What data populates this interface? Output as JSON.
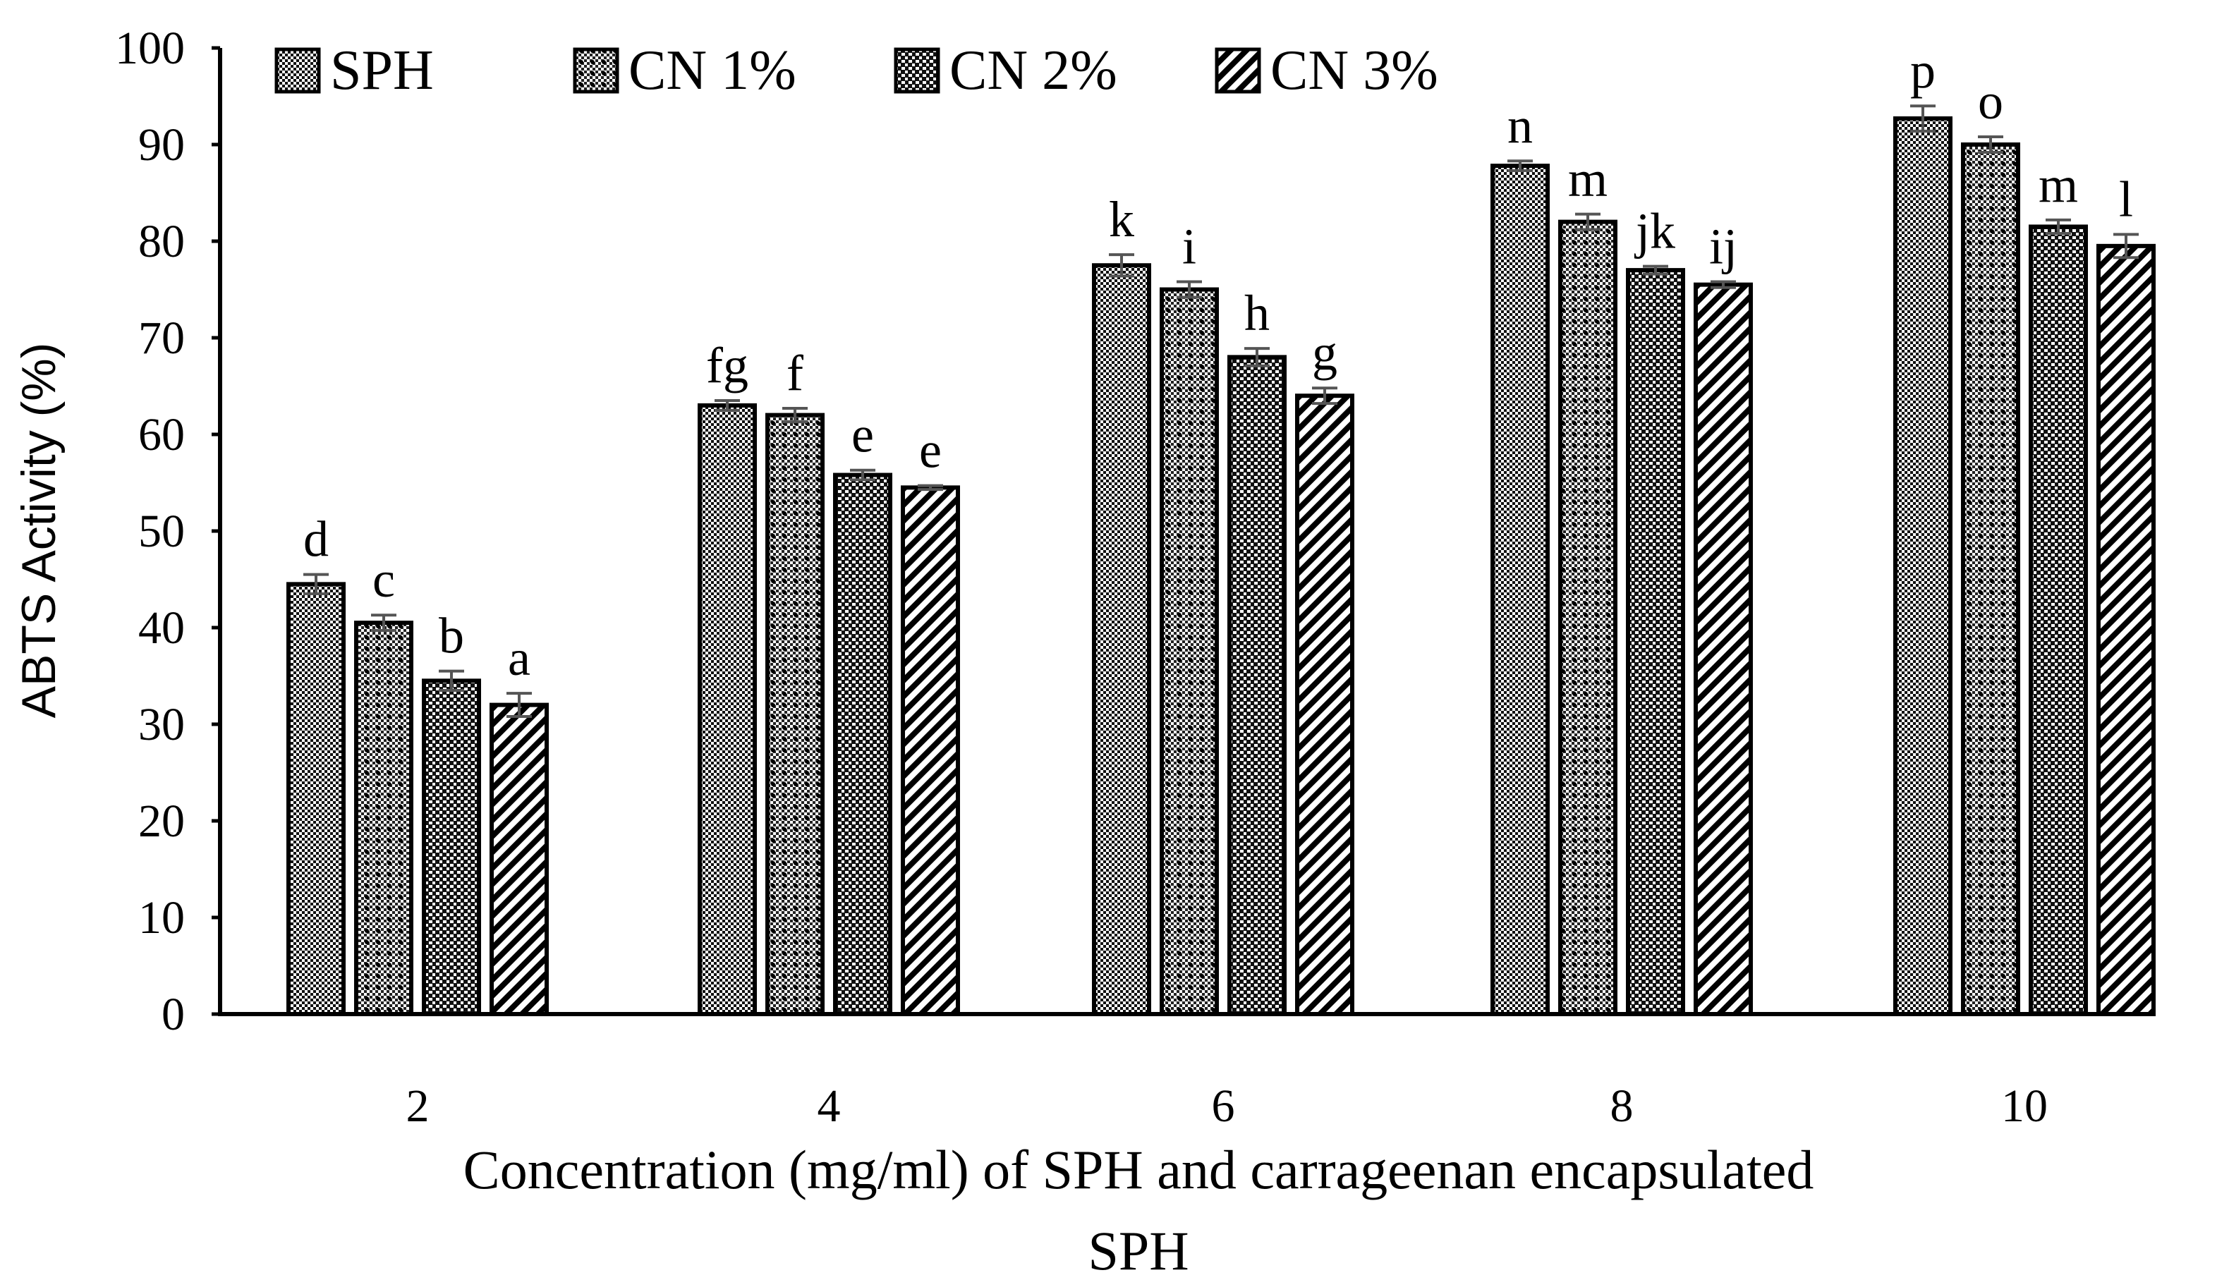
{
  "chart_data": {
    "type": "bar",
    "title": "",
    "xlabel": "Concentration (mg/ml) of SPH and carrageenan encapsulated SPH",
    "xlabel_lines": [
      "Concentration (mg/ml) of SPH and carrageenan encapsulated",
      "SPH"
    ],
    "ylabel": "ABTS Activity (%)",
    "ylim": [
      0,
      100
    ],
    "yticks": [
      0,
      10,
      20,
      30,
      40,
      50,
      60,
      70,
      80,
      90,
      100
    ],
    "categories": [
      "2",
      "4",
      "6",
      "8",
      "10"
    ],
    "legend_position": "top-left",
    "grid": false,
    "series": [
      {
        "name": "SPH",
        "pattern": "checker",
        "values": [
          44.5,
          63.0,
          77.5,
          87.8,
          92.7
        ],
        "errors": [
          1.0,
          0.5,
          1.1,
          0.5,
          1.3
        ],
        "letters": [
          "d",
          "fg",
          "k",
          "n",
          "p"
        ]
      },
      {
        "name": "CN 1%",
        "pattern": "dotted",
        "values": [
          40.5,
          62.0,
          75.0,
          82.0,
          90.0
        ],
        "errors": [
          0.8,
          0.7,
          0.8,
          0.8,
          0.8
        ],
        "letters": [
          "c",
          "f",
          "i",
          "m",
          "o"
        ]
      },
      {
        "name": "CN 2%",
        "pattern": "dense",
        "values": [
          34.5,
          55.8,
          68.0,
          77.0,
          81.5
        ],
        "errors": [
          1.0,
          0.5,
          0.9,
          0.4,
          0.7
        ],
        "letters": [
          "b",
          "e",
          "h",
          "jk",
          "m"
        ]
      },
      {
        "name": "CN 3%",
        "pattern": "stripe",
        "values": [
          32.0,
          54.5,
          64.0,
          75.5,
          79.5
        ],
        "errors": [
          1.2,
          0.2,
          0.8,
          0.3,
          1.2
        ],
        "letters": [
          "a",
          "e",
          "g",
          "ij",
          "l"
        ]
      }
    ]
  }
}
